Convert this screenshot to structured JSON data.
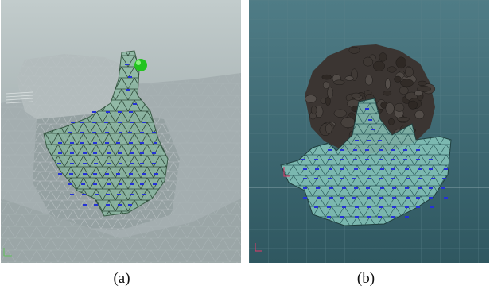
{
  "figure": {
    "captions": {
      "a": "(a)",
      "b": "(b)"
    }
  },
  "panels": {
    "a": {
      "highlight_marker_color": "#22c41e",
      "mesh_fill": "#7fb79a",
      "label_color": "#2432d6"
    },
    "b": {
      "rock_color": "#3b3532",
      "mesh_fill": "#8ed0c3",
      "label_color": "#2432d6",
      "axis_color": "#e23a6a"
    }
  }
}
